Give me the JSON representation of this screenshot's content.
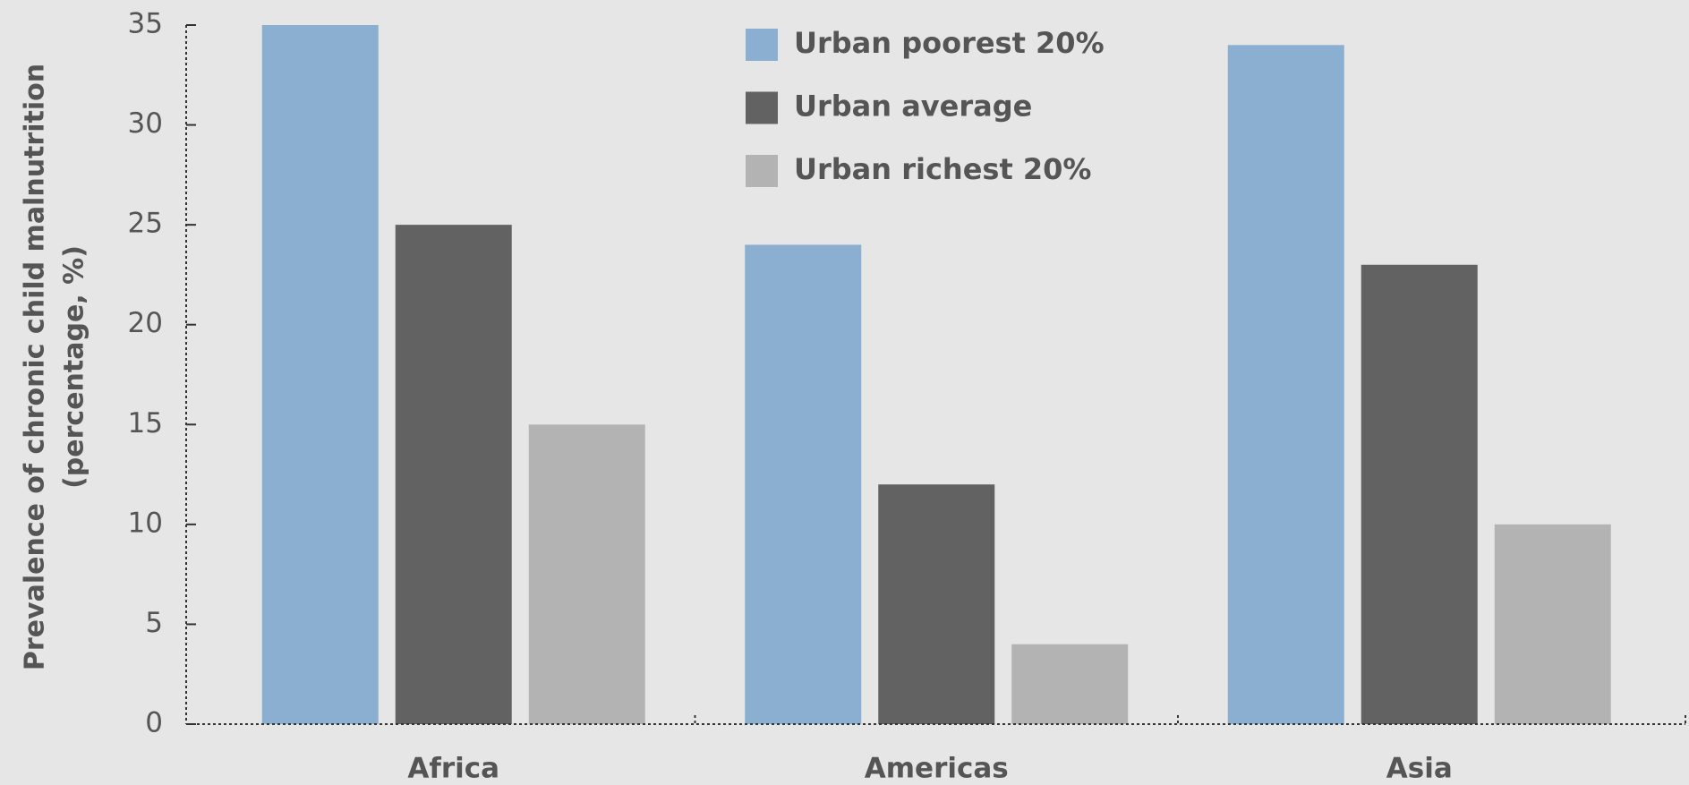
{
  "chart_data": {
    "type": "bar",
    "ylabel": [
      "Prevalence of chronic child malnutrition",
      "(percentage, %)"
    ],
    "categories": [
      "Africa",
      "Americas",
      "Asia"
    ],
    "series": [
      {
        "name": "Urban poorest 20%",
        "color": "#8aafd0",
        "values": [
          35,
          24,
          34
        ]
      },
      {
        "name": "Urban average",
        "color": "#626262",
        "values": [
          25,
          12,
          23
        ]
      },
      {
        "name": "Urban richest 20%",
        "color": "#b3b3b3",
        "values": [
          15,
          4,
          10
        ]
      }
    ],
    "ylim": [
      0,
      35
    ],
    "yticks": [
      0,
      5,
      10,
      15,
      20,
      25,
      30,
      35
    ],
    "grid": false,
    "legend": "top"
  }
}
